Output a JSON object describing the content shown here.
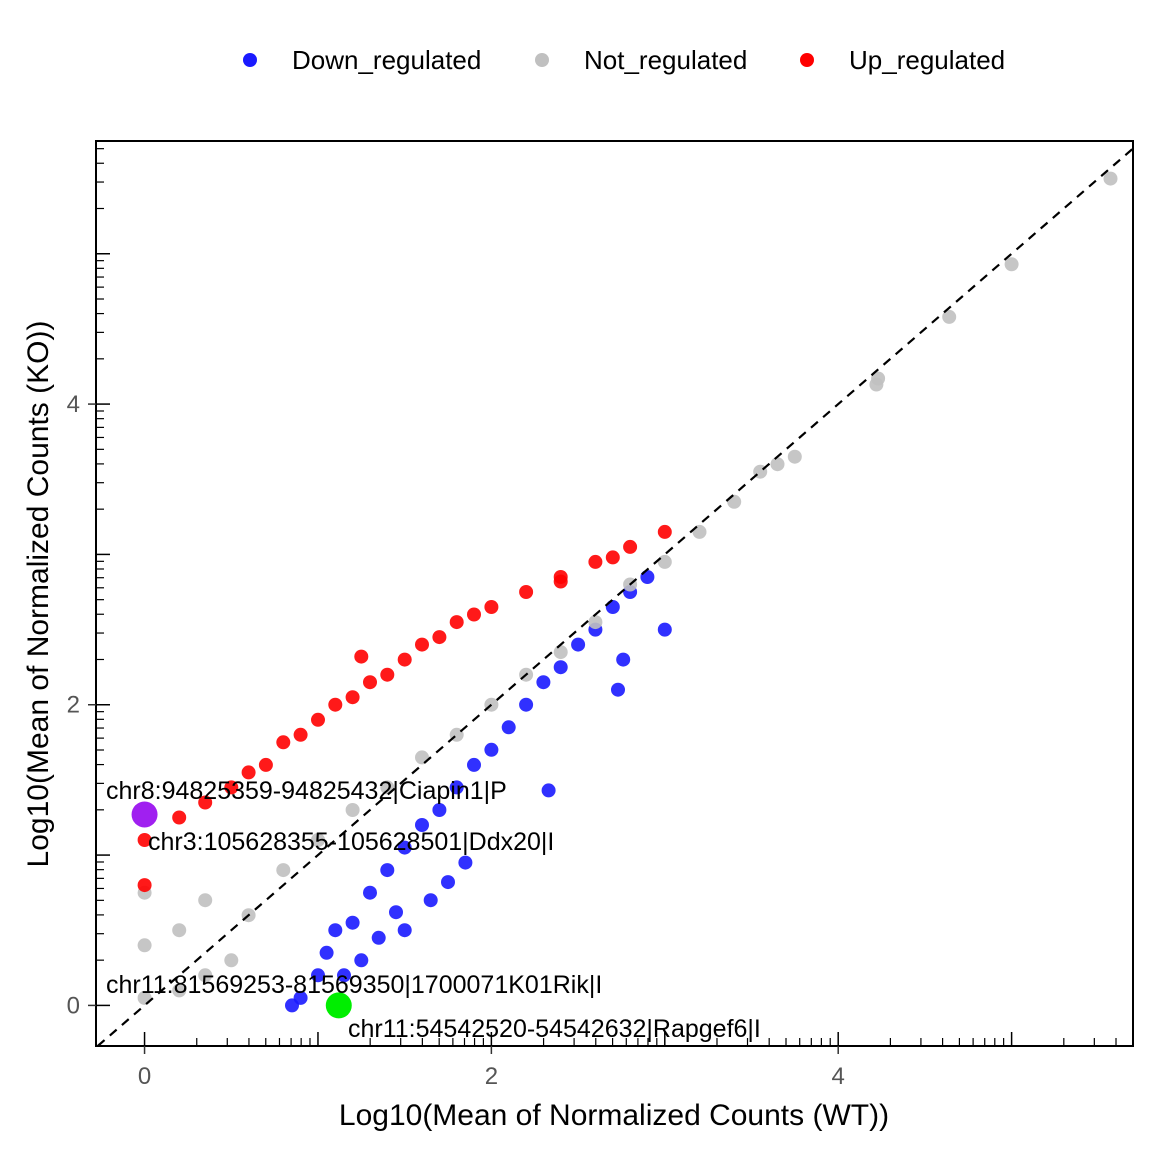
{
  "chart_data": {
    "type": "scatter",
    "title": "",
    "xlabel": "Log10(Mean of Normalized Counts (WT))",
    "ylabel": "Log10(Mean of Normalized Counts (KO))",
    "xlim": [
      -0.28,
      5.7
    ],
    "ylim": [
      -0.27,
      5.75
    ],
    "x_ticks": [
      0,
      2,
      4
    ],
    "y_ticks": [
      0,
      2,
      4
    ],
    "grid": false,
    "legend_position": "top",
    "reference_line": {
      "type": "identity",
      "style": "dashed",
      "color": "#000000"
    },
    "colors": {
      "Down_regulated": "#1a1aff",
      "Not_regulated": "#c0c0c0",
      "Up_regulated": "#ff0000"
    },
    "series": [
      {
        "name": "Down_regulated",
        "color": "#1a1aff",
        "points": [
          [
            0.85,
            0.0
          ],
          [
            0.9,
            0.05
          ],
          [
            1.0,
            0.2
          ],
          [
            1.05,
            0.35
          ],
          [
            1.1,
            0.5
          ],
          [
            1.2,
            0.55
          ],
          [
            1.3,
            0.75
          ],
          [
            1.4,
            0.9
          ],
          [
            1.5,
            1.05
          ],
          [
            1.6,
            1.2
          ],
          [
            1.7,
            1.3
          ],
          [
            1.8,
            1.45
          ],
          [
            1.9,
            1.6
          ],
          [
            2.0,
            1.7
          ],
          [
            2.1,
            1.85
          ],
          [
            2.2,
            2.0
          ],
          [
            2.3,
            2.15
          ],
          [
            2.4,
            2.25
          ],
          [
            2.5,
            2.4
          ],
          [
            2.6,
            2.5
          ],
          [
            2.7,
            2.65
          ],
          [
            2.8,
            2.75
          ],
          [
            2.9,
            2.85
          ],
          [
            3.0,
            2.5
          ],
          [
            2.76,
            2.3
          ],
          [
            2.73,
            2.1
          ],
          [
            2.33,
            1.43
          ],
          [
            1.85,
            0.95
          ],
          [
            1.75,
            0.82
          ],
          [
            1.65,
            0.7
          ],
          [
            1.5,
            0.5
          ],
          [
            1.45,
            0.62
          ],
          [
            1.35,
            0.45
          ],
          [
            1.25,
            0.3
          ],
          [
            1.15,
            0.2
          ]
        ]
      },
      {
        "name": "Not_regulated",
        "color": "#c0c0c0",
        "points": [
          [
            0.0,
            0.05
          ],
          [
            0.0,
            0.4
          ],
          [
            0.0,
            0.75
          ],
          [
            0.2,
            0.1
          ],
          [
            0.2,
            0.5
          ],
          [
            0.35,
            0.2
          ],
          [
            0.35,
            0.7
          ],
          [
            0.5,
            0.3
          ],
          [
            0.6,
            0.6
          ],
          [
            0.8,
            0.9
          ],
          [
            1.0,
            1.1
          ],
          [
            1.2,
            1.3
          ],
          [
            1.4,
            1.45
          ],
          [
            1.6,
            1.65
          ],
          [
            1.8,
            1.8
          ],
          [
            2.0,
            2.0
          ],
          [
            2.2,
            2.2
          ],
          [
            2.4,
            2.35
          ],
          [
            2.6,
            2.55
          ],
          [
            2.8,
            2.8
          ],
          [
            3.0,
            2.95
          ],
          [
            3.2,
            3.15
          ],
          [
            3.4,
            3.35
          ],
          [
            3.55,
            3.55
          ],
          [
            3.65,
            3.6
          ],
          [
            3.75,
            3.65
          ],
          [
            4.22,
            4.13
          ],
          [
            4.23,
            4.17
          ],
          [
            4.64,
            4.58
          ],
          [
            5.0,
            4.93
          ],
          [
            5.57,
            5.5
          ]
        ]
      },
      {
        "name": "Up_regulated",
        "color": "#ff0000",
        "points": [
          [
            0.0,
            0.8
          ],
          [
            0.0,
            1.1
          ],
          [
            0.2,
            1.25
          ],
          [
            0.35,
            1.35
          ],
          [
            0.5,
            1.45
          ],
          [
            0.6,
            1.55
          ],
          [
            0.7,
            1.6
          ],
          [
            0.8,
            1.75
          ],
          [
            0.9,
            1.8
          ],
          [
            1.0,
            1.9
          ],
          [
            1.1,
            2.0
          ],
          [
            1.2,
            2.05
          ],
          [
            1.3,
            2.15
          ],
          [
            1.4,
            2.2
          ],
          [
            1.5,
            2.3
          ],
          [
            1.6,
            2.4
          ],
          [
            1.7,
            2.45
          ],
          [
            1.8,
            2.55
          ],
          [
            1.9,
            2.6
          ],
          [
            2.0,
            2.65
          ],
          [
            2.2,
            2.75
          ],
          [
            2.4,
            2.85
          ],
          [
            2.6,
            2.95
          ],
          [
            2.8,
            3.05
          ],
          [
            3.0,
            3.15
          ],
          [
            1.25,
            2.32
          ],
          [
            2.4,
            2.82
          ],
          [
            2.7,
            2.98
          ]
        ]
      }
    ],
    "highlighted": [
      {
        "label": "chr8:94825359-94825432|Ciapin1|P",
        "x": 0.0,
        "y": 1.27,
        "color": "#a020f0"
      },
      {
        "label": "chr3:105628355-105628501|Ddx20|I",
        "x": 0.0,
        "y": 1.27,
        "color": "#a020f0"
      },
      {
        "label": "chr11:81569253-81569350|1700071K01Rik|I",
        "x": 1.12,
        "y": 0.0,
        "color": "#00ee00"
      },
      {
        "label": "chr11:54542520-54542632|Rapgef6|I",
        "x": 1.12,
        "y": 0.0,
        "color": "#00ee00"
      }
    ]
  }
}
